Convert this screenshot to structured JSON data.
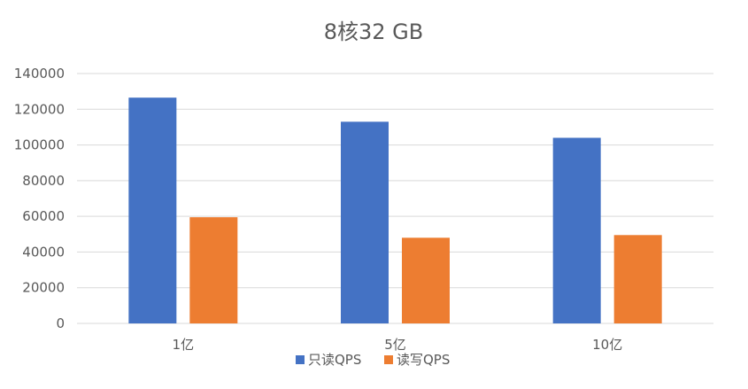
{
  "chart_data": {
    "type": "bar",
    "title": "8核32 GB",
    "categories": [
      "1亿",
      "5亿",
      "10亿"
    ],
    "series": [
      {
        "name": "只读QPS",
        "color": "#4472C4",
        "values": [
          126500,
          113000,
          104000
        ]
      },
      {
        "name": "读写QPS",
        "color": "#ED7D31",
        "values": [
          59500,
          48000,
          49500
        ]
      }
    ],
    "ylim": [
      0,
      140000
    ],
    "yticks": [
      "0",
      "20000",
      "40000",
      "60000",
      "80000",
      "100000",
      "120000",
      "140000"
    ],
    "grid": true,
    "legend_position": "bottom"
  }
}
